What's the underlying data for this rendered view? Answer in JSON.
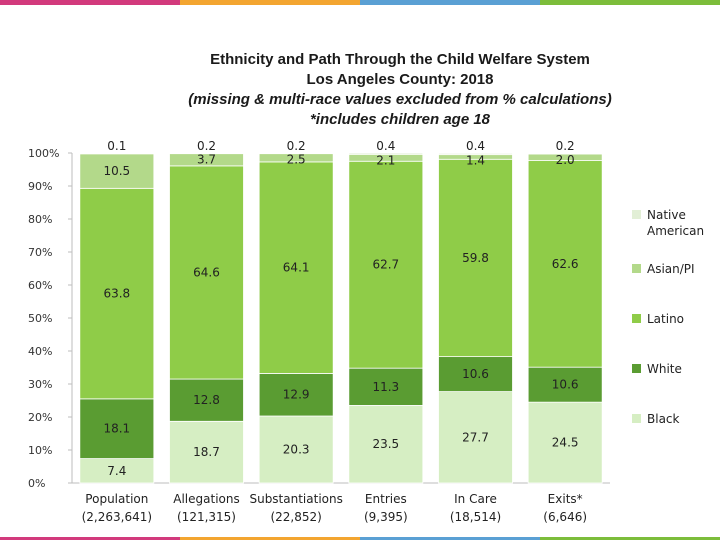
{
  "accent_colors": {
    "pink": "#d23a7c",
    "orange": "#f3a530",
    "blue": "#5aa0d4",
    "green": "#7cbd3b"
  },
  "header": {
    "title_line1": "Ethnicity and Path Through the Child Welfare System",
    "title_line2": "Los Angeles County: 2018",
    "title_line3": "(missing & multi-race  values excluded from % calculations)",
    "title_line4": "*includes children age 18"
  },
  "chart_data": {
    "type": "bar",
    "stacked": true,
    "title": "Ethnicity and Path Through the Child Welfare System",
    "subtitle": "Los Angeles County: 2018",
    "ylim": [
      0,
      100
    ],
    "yticks": [
      "0%",
      "10%",
      "20%",
      "30%",
      "40%",
      "50%",
      "60%",
      "70%",
      "80%",
      "90%",
      "100%"
    ],
    "categories": [
      "Population",
      "Allegations",
      "Substantiations",
      "Entries",
      "In Care",
      "Exits*"
    ],
    "category_counts": [
      "(2,263,641)",
      "(121,315)",
      "(22,852)",
      "(9,395)",
      "(18,514)",
      "(6,646)"
    ],
    "series": [
      {
        "name": "Black",
        "color": "#d6eec3",
        "values": [
          7.4,
          18.7,
          20.3,
          23.5,
          27.7,
          24.5
        ]
      },
      {
        "name": "White",
        "color": "#5a9c32",
        "values": [
          18.1,
          12.8,
          12.9,
          11.3,
          10.6,
          10.6
        ]
      },
      {
        "name": "Latino",
        "color": "#8fcc48",
        "values": [
          63.8,
          64.6,
          64.1,
          62.7,
          59.8,
          62.6
        ]
      },
      {
        "name": "Asian/PI",
        "color": "#b3d98a",
        "values": [
          10.5,
          3.7,
          2.5,
          2.1,
          1.4,
          2.0
        ]
      },
      {
        "name": "Native American",
        "color": "#e2efd6",
        "values": [
          0.1,
          0.2,
          0.2,
          0.4,
          0.4,
          0.2
        ]
      }
    ],
    "value_labels": [
      [
        "7.4",
        "18.1",
        "63.8",
        "10.5",
        "0.1"
      ],
      [
        "18.7",
        "12.8",
        "64.6",
        "3.7",
        "0.2"
      ],
      [
        "20.3",
        "12.9",
        "64.1",
        "2.5",
        "0.2"
      ],
      [
        "23.5",
        "11.3",
        "62.7",
        "2.1",
        "0.4"
      ],
      [
        "27.7",
        "10.6",
        "59.8",
        "1.4",
        "0.4"
      ],
      [
        "24.5",
        "10.6",
        "62.6",
        "2.0",
        "0.2"
      ]
    ],
    "legend": [
      "Native American",
      "Asian/PI",
      "Latino",
      "White",
      "Black"
    ],
    "legend_lines": [
      [
        "Native",
        "American"
      ],
      [
        "Asian/PI"
      ],
      [
        "Latino"
      ],
      [
        "White"
      ],
      [
        "Black"
      ]
    ],
    "legend_position": "right"
  }
}
